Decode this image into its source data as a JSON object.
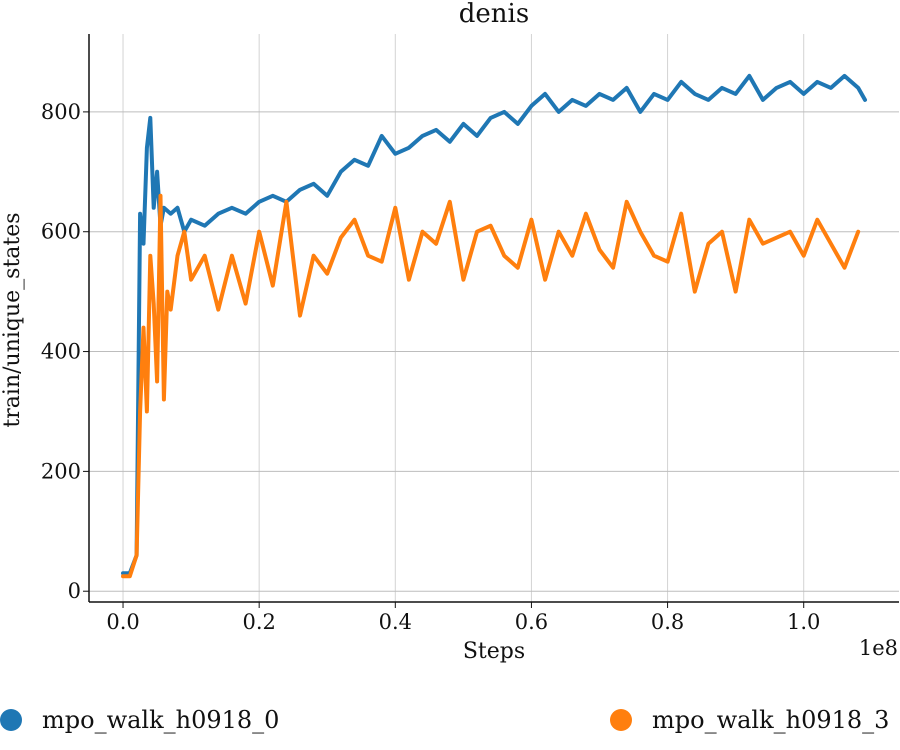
{
  "chart_data": {
    "type": "line",
    "title": "denis",
    "xlabel": "Steps",
    "ylabel": "train/unique_states",
    "x_scale_note": "1e8",
    "xlim": [
      -0.05,
      1.14
    ],
    "ylim": [
      -18,
      930
    ],
    "x_ticks": [
      0.0,
      0.2,
      0.4,
      0.6,
      0.8,
      1.0
    ],
    "x_tick_labels": [
      "0.0",
      "0.2",
      "0.4",
      "0.6",
      "0.8",
      "1.0"
    ],
    "y_ticks": [
      0,
      200,
      400,
      600,
      800
    ],
    "y_tick_labels": [
      "0",
      "200",
      "400",
      "600",
      "800"
    ],
    "grid": true,
    "legend_position": "bottom",
    "series": [
      {
        "name": "mpo_walk_h0918_0",
        "color": "#1f77b4",
        "x": [
          0.0,
          0.01,
          0.02,
          0.025,
          0.03,
          0.035,
          0.04,
          0.045,
          0.05,
          0.055,
          0.06,
          0.07,
          0.08,
          0.09,
          0.1,
          0.12,
          0.14,
          0.16,
          0.18,
          0.2,
          0.22,
          0.24,
          0.26,
          0.28,
          0.3,
          0.32,
          0.34,
          0.36,
          0.38,
          0.4,
          0.42,
          0.44,
          0.46,
          0.48,
          0.5,
          0.52,
          0.54,
          0.56,
          0.58,
          0.6,
          0.62,
          0.64,
          0.66,
          0.68,
          0.7,
          0.72,
          0.74,
          0.76,
          0.78,
          0.8,
          0.82,
          0.84,
          0.86,
          0.88,
          0.9,
          0.92,
          0.94,
          0.96,
          0.98,
          1.0,
          1.02,
          1.04,
          1.06,
          1.08,
          1.09
        ],
        "y": [
          30,
          30,
          60,
          630,
          580,
          740,
          790,
          640,
          700,
          610,
          640,
          630,
          640,
          600,
          620,
          610,
          630,
          640,
          630,
          650,
          660,
          650,
          670,
          680,
          660,
          700,
          720,
          710,
          760,
          730,
          740,
          760,
          770,
          750,
          780,
          760,
          790,
          800,
          780,
          810,
          830,
          800,
          820,
          810,
          830,
          820,
          840,
          800,
          830,
          820,
          850,
          830,
          820,
          840,
          830,
          860,
          820,
          840,
          850,
          830,
          850,
          840,
          860,
          840,
          820
        ]
      },
      {
        "name": "mpo_walk_h0918_3",
        "color": "#ff7f0e",
        "x": [
          0.0,
          0.01,
          0.02,
          0.025,
          0.03,
          0.035,
          0.04,
          0.045,
          0.05,
          0.055,
          0.06,
          0.065,
          0.07,
          0.08,
          0.09,
          0.1,
          0.12,
          0.14,
          0.16,
          0.18,
          0.2,
          0.22,
          0.24,
          0.26,
          0.28,
          0.3,
          0.32,
          0.34,
          0.36,
          0.38,
          0.4,
          0.42,
          0.44,
          0.46,
          0.48,
          0.5,
          0.52,
          0.54,
          0.56,
          0.58,
          0.6,
          0.62,
          0.64,
          0.66,
          0.68,
          0.7,
          0.72,
          0.74,
          0.76,
          0.78,
          0.8,
          0.82,
          0.84,
          0.86,
          0.88,
          0.9,
          0.92,
          0.94,
          0.96,
          0.98,
          1.0,
          1.02,
          1.04,
          1.06,
          1.08
        ],
        "y": [
          25,
          25,
          60,
          300,
          440,
          300,
          560,
          480,
          350,
          660,
          320,
          500,
          470,
          560,
          600,
          520,
          560,
          470,
          560,
          480,
          600,
          510,
          650,
          460,
          560,
          530,
          590,
          620,
          560,
          550,
          640,
          520,
          600,
          580,
          650,
          520,
          600,
          610,
          560,
          540,
          620,
          520,
          600,
          560,
          630,
          570,
          540,
          650,
          600,
          560,
          550,
          630,
          500,
          580,
          600,
          500,
          620,
          580,
          590,
          600,
          560,
          620,
          580,
          540,
          600
        ]
      }
    ]
  }
}
